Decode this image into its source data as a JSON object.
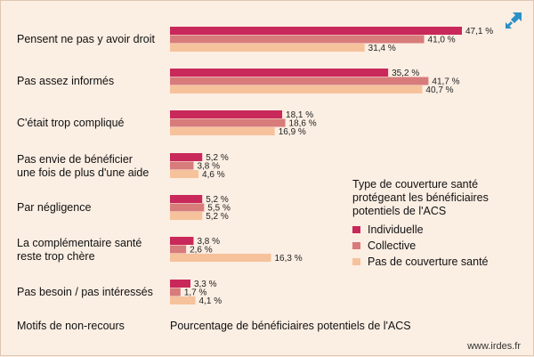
{
  "colors": {
    "background": "#fbeee3",
    "individuelle": "#c8285a",
    "collective": "#d87b7b",
    "aucune": "#f6c29c",
    "icon_accent": "#2a90c6"
  },
  "icons": {
    "expand": "expand-arrows-icon"
  },
  "chart_data": {
    "type": "bar",
    "orientation": "horizontal",
    "categories": [
      "Pensent ne pas y avoir droit",
      "Pas assez informés",
      "C'était trop compliqué",
      "Pas envie de bénéficier une fois de plus d'une aide",
      "Par négligence",
      "La complémentaire santé reste trop chère",
      "Pas besoin / pas intéressés"
    ],
    "category_lines": [
      [
        "Pensent ne pas y avoir droit"
      ],
      [
        "Pas assez informés"
      ],
      [
        "C'était trop compliqué"
      ],
      [
        "Pas envie de bénéficier",
        "une fois de plus d'une aide"
      ],
      [
        "Par négligence"
      ],
      [
        "La complémentaire santé",
        "reste trop chère"
      ],
      [
        "Pas besoin / pas intéressés"
      ]
    ],
    "series": [
      {
        "name": "Individuelle",
        "values": [
          47.1,
          35.2,
          18.1,
          5.2,
          5.2,
          3.8,
          3.3
        ],
        "labels": [
          "47,1 %",
          "35,2 %",
          "18,1 %",
          "5,2 %",
          "5,2 %",
          "3,8 %",
          "3,3 %"
        ]
      },
      {
        "name": "Collective",
        "values": [
          41.0,
          41.7,
          18.6,
          3.8,
          5.5,
          2.6,
          1.7
        ],
        "labels": [
          "41,0 %",
          "41,7 %",
          "18,6 %",
          "3,8 %",
          "5,5 %",
          "2,6 %",
          "1,7 %"
        ]
      },
      {
        "name": "Pas de couverture santé",
        "values": [
          31.4,
          40.7,
          16.9,
          4.6,
          5.2,
          16.3,
          4.1
        ],
        "labels": [
          "31,4 %",
          "40,7 %",
          "16,9 %",
          "4,6 %",
          "5,2 %",
          "16,3 %",
          "4,1 %"
        ]
      }
    ],
    "xlim": [
      0,
      50
    ],
    "xlabel": "Pourcentage de bénéficiaires potentiels de l'ACS",
    "ylabel": "Motifs de non-recours",
    "legend": {
      "title_lines": [
        "Type de couverture santé",
        "protégeant les bénéficiaires",
        "potentiels de l'ACS"
      ],
      "placement": "right"
    },
    "grid": false
  },
  "source": "www.irdes.fr"
}
